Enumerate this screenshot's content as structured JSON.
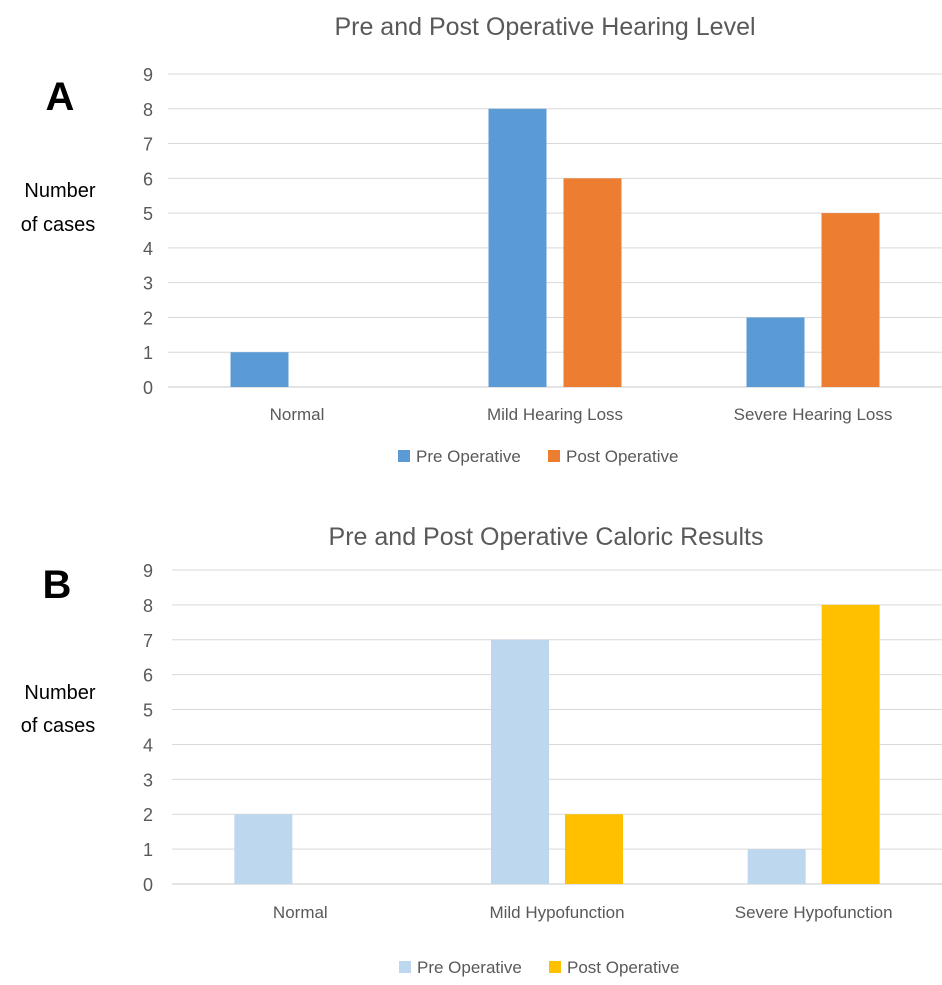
{
  "chart_data": [
    {
      "type": "bar",
      "panel_label": "A",
      "title": "Pre and Post Operative Hearing Level",
      "ylabel_lines": [
        "Number",
        "of cases"
      ],
      "xlabel": "",
      "categories": [
        "Normal",
        "Mild Hearing Loss",
        "Severe Hearing Loss"
      ],
      "yticks": [
        "0",
        "1",
        "2",
        "3",
        "4",
        "5",
        "6",
        "7",
        "8",
        "9"
      ],
      "ylim": [
        0,
        9
      ],
      "grid": true,
      "legend_position": "bottom",
      "series": [
        {
          "name": "Pre Operative",
          "color": "#5B9BD5",
          "values": [
            1,
            8,
            2
          ]
        },
        {
          "name": "Post Operative",
          "color": "#ED7D31",
          "values": [
            0,
            6,
            5
          ]
        }
      ]
    },
    {
      "type": "bar",
      "panel_label": "B",
      "title": "Pre and Post Operative Caloric Results",
      "ylabel_lines": [
        "Number",
        "of cases"
      ],
      "xlabel": "",
      "categories": [
        "Normal",
        "Mild Hypofunction",
        "Severe Hypofunction"
      ],
      "yticks": [
        "0",
        "1",
        "2",
        "3",
        "4",
        "5",
        "6",
        "7",
        "8",
        "9"
      ],
      "ylim": [
        0,
        9
      ],
      "grid": true,
      "legend_position": "bottom",
      "series": [
        {
          "name": "Pre Operative",
          "color": "#BDD7EE",
          "values": [
            2,
            7,
            1
          ]
        },
        {
          "name": "Post Operative",
          "color": "#FFC000",
          "values": [
            0,
            2,
            8
          ]
        }
      ]
    }
  ]
}
